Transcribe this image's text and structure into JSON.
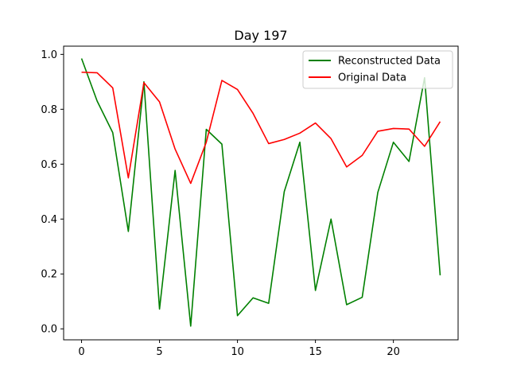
{
  "chart_data": {
    "type": "line",
    "title": "Day 197",
    "xlabel": "",
    "ylabel": "",
    "xlim": [
      -1.15,
      24.15
    ],
    "ylim": [
      -0.04,
      1.03
    ],
    "x_ticks": [
      0,
      5,
      10,
      15,
      20
    ],
    "x_tick_labels": [
      "0",
      "5",
      "10",
      "15",
      "20"
    ],
    "y_ticks": [
      0.0,
      0.2,
      0.4,
      0.6,
      0.8,
      1.0
    ],
    "y_tick_labels": [
      "0.0",
      "0.2",
      "0.4",
      "0.6",
      "0.8",
      "1.0"
    ],
    "grid": false,
    "legend_position": "upper right",
    "x": [
      0,
      1,
      2,
      3,
      4,
      5,
      6,
      7,
      8,
      9,
      10,
      11,
      12,
      13,
      14,
      15,
      16,
      17,
      18,
      19,
      20,
      21,
      22,
      23
    ],
    "series": [
      {
        "name": "Reconstructed Data",
        "color": "#008000",
        "values": [
          0.985,
          0.83,
          0.715,
          0.355,
          0.9,
          0.072,
          0.577,
          0.01,
          0.727,
          0.673,
          0.048,
          0.113,
          0.093,
          0.5,
          0.68,
          0.14,
          0.4,
          0.088,
          0.115,
          0.497,
          0.68,
          0.61,
          0.915,
          0.195
        ]
      },
      {
        "name": "Original Data",
        "color": "#ff0000",
        "values": [
          0.935,
          0.933,
          0.878,
          0.55,
          0.897,
          0.827,
          0.655,
          0.53,
          0.68,
          0.905,
          0.872,
          0.785,
          0.675,
          0.69,
          0.713,
          0.75,
          0.693,
          0.59,
          0.632,
          0.72,
          0.73,
          0.728,
          0.665,
          0.755
        ]
      }
    ]
  }
}
